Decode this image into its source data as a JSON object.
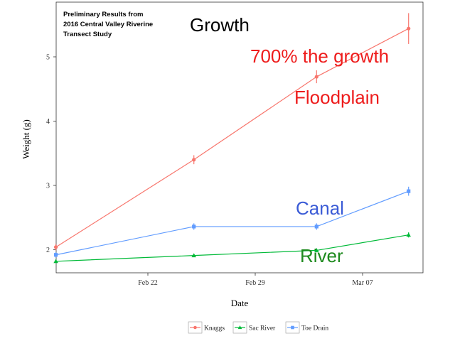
{
  "chart_data": {
    "type": "line",
    "note_lines": [
      "Preliminary Results from",
      "2016 Central Valley Riverine",
      "Transect Study"
    ],
    "xlabel": "Date",
    "ylabel": "Weight (g)",
    "x_ticks": [
      "Feb 22",
      "Feb 29",
      "Mar 07"
    ],
    "y_ticks": [
      "2",
      "3",
      "4",
      "5"
    ],
    "ylim": [
      1.6,
      5.8
    ],
    "xlim": [
      "2016-02-15",
      "2016-03-11"
    ],
    "x": [
      "2016-02-16",
      "2016-02-25",
      "2016-03-04",
      "2016-03-10"
    ],
    "series": [
      {
        "name": "Knaggs",
        "color": "#f8766d",
        "marker": "circle",
        "values": [
          2.04,
          3.4,
          4.69,
          5.44
        ],
        "err": [
          0.05,
          0.07,
          0.1,
          0.24
        ]
      },
      {
        "name": "Sac River",
        "color": "#00ba38",
        "marker": "triangle",
        "values": [
          1.82,
          1.91,
          1.99,
          2.23
        ],
        "err": [
          0.02,
          0.02,
          0.03,
          0.04
        ]
      },
      {
        "name": "Toe Drain",
        "color": "#619cff",
        "marker": "square",
        "values": [
          1.92,
          2.36,
          2.36,
          2.91
        ],
        "err": [
          0.04,
          0.05,
          0.05,
          0.07
        ]
      }
    ],
    "annotations": [
      {
        "text": "Growth",
        "color": "#000000"
      },
      {
        "text": "700% the growth",
        "color": "#ee1c1c"
      },
      {
        "text": "Floodplain",
        "color": "#ee1c1c"
      },
      {
        "text": "Canal",
        "color": "#3a5bd6"
      },
      {
        "text": "River",
        "color": "#1e8a1e"
      }
    ],
    "legend_position": "bottom",
    "grid": false
  }
}
